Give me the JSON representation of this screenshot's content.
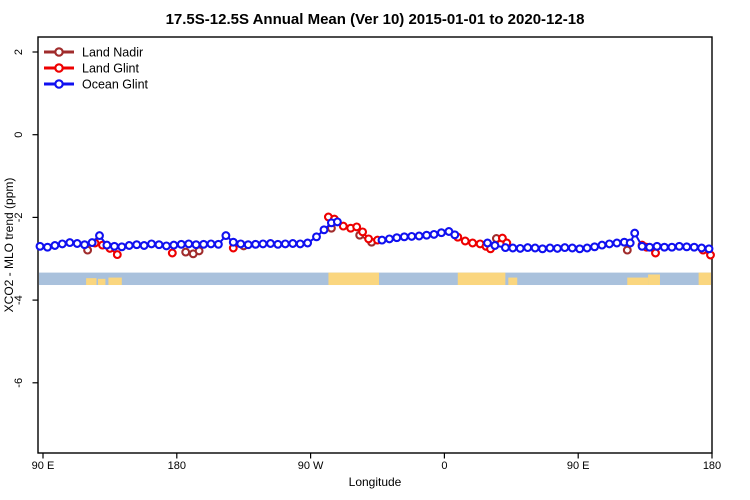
{
  "window": {
    "title": "17.5S-12.5S Annual Mean (Ver 10)   2015-01-01 to 2020-12-18"
  },
  "chart_data": {
    "type": "line",
    "title": "17.5S-12.5S Annual Mean (Ver 10)   2015-01-01 to 2020-12-18",
    "xlabel": "Longitude",
    "ylabel": "XCO2 - MLO trend (ppm)",
    "grid": false,
    "legend_position": "top-left",
    "xlim": [
      86.6,
      540
    ],
    "ylim": [
      -7.7,
      2.36
    ],
    "x_axis_note": "longitude axis wraps: 90E to 180 spanning 450 degrees",
    "x_ticks": [
      {
        "lon": 90,
        "label": "90 E"
      },
      {
        "lon": 180,
        "label": "180"
      },
      {
        "lon": 270,
        "label": "90 W"
      },
      {
        "lon": 360,
        "label": "0"
      },
      {
        "lon": 450,
        "label": "90 E"
      },
      {
        "lon": 540,
        "label": "180"
      }
    ],
    "y_ticks": [
      {
        "v": 2,
        "label": "2"
      },
      {
        "v": 0,
        "label": "0"
      },
      {
        "v": -2,
        "label": "-2"
      },
      {
        "v": -4,
        "label": "-4"
      },
      {
        "v": -6,
        "label": "-6"
      }
    ],
    "series": [
      {
        "name": "Land Nadir",
        "color": "#A02C2C",
        "points": [
          [
            120,
            -2.79
          ],
          [
            186,
            -2.84
          ],
          [
            191,
            -2.88
          ],
          [
            195,
            -2.81
          ],
          [
            225,
            -2.69
          ],
          [
            284,
            -2.26
          ],
          [
            303,
            -2.43
          ],
          [
            311,
            -2.6
          ],
          [
            395,
            -2.51
          ],
          [
            483,
            -2.79
          ]
        ]
      },
      {
        "name": "Land Glint",
        "color": "#EE0000",
        "points": [
          [
            125,
            -2.62
          ],
          [
            130,
            -2.67
          ],
          [
            135,
            -2.75
          ],
          [
            140,
            -2.9
          ],
          [
            177,
            -2.86
          ],
          [
            218,
            -2.74
          ],
          [
            282,
            -1.99
          ],
          [
            286,
            -2.04
          ],
          [
            292,
            -2.21
          ],
          [
            297,
            -2.26
          ],
          [
            301,
            -2.23
          ],
          [
            305,
            -2.35
          ],
          [
            309,
            -2.52
          ],
          [
            315,
            -2.55
          ],
          [
            369,
            -2.48
          ],
          [
            374,
            -2.57
          ],
          [
            379,
            -2.62
          ],
          [
            384,
            -2.64
          ],
          [
            388,
            -2.7
          ],
          [
            391,
            -2.76
          ],
          [
            399,
            -2.5
          ],
          [
            402,
            -2.62
          ],
          [
            493,
            -2.67
          ],
          [
            496,
            -2.72
          ],
          [
            502,
            -2.86
          ],
          [
            534,
            -2.79
          ],
          [
            539,
            -2.91
          ]
        ]
      },
      {
        "name": "Ocean Glint",
        "color": "#1010F0",
        "points": [
          [
            88,
            -2.7
          ],
          [
            93,
            -2.72
          ],
          [
            98,
            -2.68
          ],
          [
            103,
            -2.64
          ],
          [
            108,
            -2.61
          ],
          [
            113,
            -2.63
          ],
          [
            118,
            -2.66
          ],
          [
            123,
            -2.61
          ],
          [
            128,
            -2.44
          ],
          [
            133,
            -2.67
          ],
          [
            138,
            -2.7
          ],
          [
            143,
            -2.71
          ],
          [
            148,
            -2.68
          ],
          [
            153,
            -2.66
          ],
          [
            158,
            -2.68
          ],
          [
            163,
            -2.64
          ],
          [
            168,
            -2.66
          ],
          [
            173,
            -2.69
          ],
          [
            178,
            -2.67
          ],
          [
            183,
            -2.65
          ],
          [
            188,
            -2.64
          ],
          [
            193,
            -2.66
          ],
          [
            198,
            -2.65
          ],
          [
            203,
            -2.64
          ],
          [
            208,
            -2.65
          ],
          [
            213,
            -2.44
          ],
          [
            218,
            -2.6
          ],
          [
            223,
            -2.64
          ],
          [
            228,
            -2.66
          ],
          [
            233,
            -2.65
          ],
          [
            238,
            -2.64
          ],
          [
            243,
            -2.63
          ],
          [
            248,
            -2.65
          ],
          [
            253,
            -2.64
          ],
          [
            258,
            -2.63
          ],
          [
            263,
            -2.64
          ],
          [
            268,
            -2.62
          ],
          [
            274,
            -2.47
          ],
          [
            279,
            -2.3
          ],
          [
            284,
            -2.13
          ],
          [
            288,
            -2.11
          ],
          [
            318,
            -2.55
          ],
          [
            323,
            -2.52
          ],
          [
            328,
            -2.49
          ],
          [
            333,
            -2.47
          ],
          [
            338,
            -2.46
          ],
          [
            343,
            -2.45
          ],
          [
            348,
            -2.43
          ],
          [
            353,
            -2.41
          ],
          [
            358,
            -2.37
          ],
          [
            363,
            -2.34
          ],
          [
            367,
            -2.42
          ],
          [
            389,
            -2.62
          ],
          [
            394,
            -2.68
          ],
          [
            401,
            -2.73
          ],
          [
            406,
            -2.74
          ],
          [
            411,
            -2.75
          ],
          [
            416,
            -2.73
          ],
          [
            421,
            -2.74
          ],
          [
            426,
            -2.76
          ],
          [
            431,
            -2.74
          ],
          [
            436,
            -2.75
          ],
          [
            441,
            -2.73
          ],
          [
            446,
            -2.74
          ],
          [
            451,
            -2.76
          ],
          [
            456,
            -2.74
          ],
          [
            461,
            -2.71
          ],
          [
            466,
            -2.67
          ],
          [
            471,
            -2.64
          ],
          [
            476,
            -2.62
          ],
          [
            481,
            -2.6
          ],
          [
            485,
            -2.62
          ],
          [
            488,
            -2.38
          ],
          [
            493,
            -2.7
          ],
          [
            498,
            -2.72
          ],
          [
            503,
            -2.7
          ],
          [
            508,
            -2.72
          ],
          [
            513,
            -2.72
          ],
          [
            518,
            -2.7
          ],
          [
            523,
            -2.71
          ],
          [
            528,
            -2.72
          ],
          [
            533,
            -2.74
          ],
          [
            538,
            -2.76
          ]
        ]
      }
    ],
    "map_band": {
      "description": "land/ocean strip for latitude band",
      "ocean_color": "#A9C1DC",
      "land_color": "#FAD67F",
      "y_top": -3.335,
      "y_bottom": -3.635,
      "land_segments": [
        {
          "from": 119,
          "to": 126,
          "frac": 0.55
        },
        {
          "from": 127,
          "to": 132,
          "frac": 0.5
        },
        {
          "from": 134,
          "to": 143,
          "frac": 0.6
        },
        {
          "from": 282,
          "to": 316,
          "frac": 1
        },
        {
          "from": 369,
          "to": 401,
          "frac": 1
        },
        {
          "from": 403,
          "to": 409,
          "frac": 0.6
        },
        {
          "from": 483,
          "to": 497,
          "frac": 0.6
        },
        {
          "from": 497,
          "to": 505,
          "frac": 0.85
        },
        {
          "from": 531,
          "to": 540,
          "frac": 1
        }
      ]
    }
  }
}
